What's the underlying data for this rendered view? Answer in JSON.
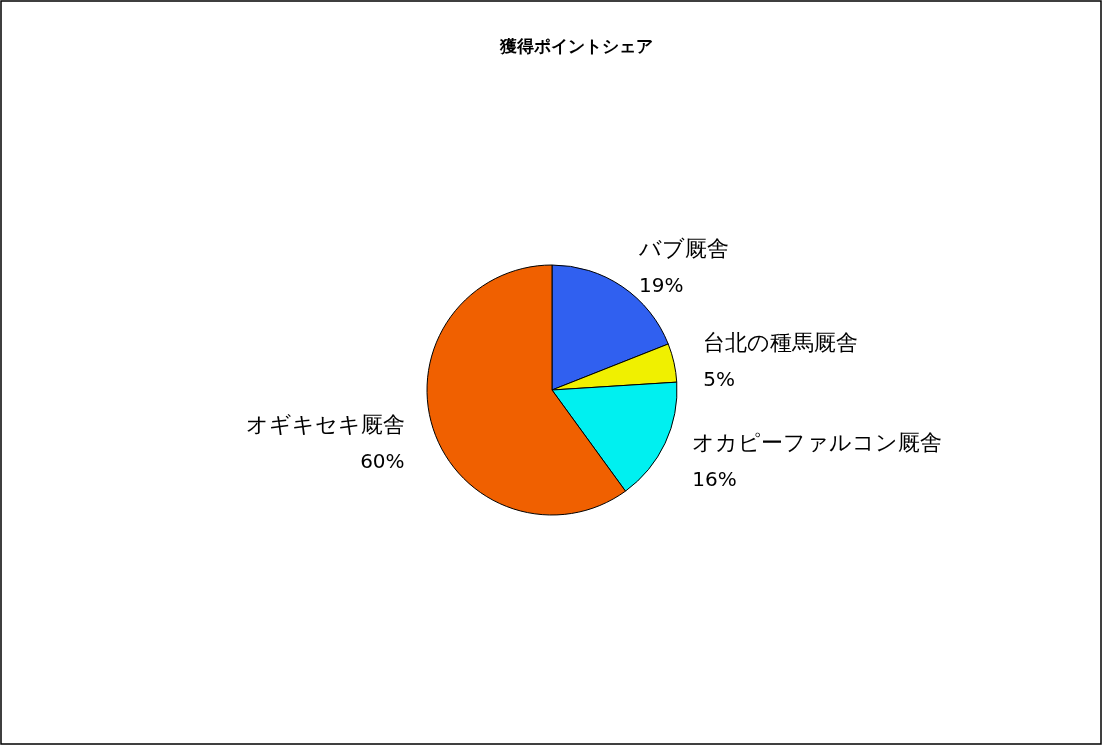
{
  "chart_data": {
    "type": "pie",
    "title": "獲得ポイントシェア",
    "categories": [
      "バブ厩舎",
      "台北の種馬厩舎",
      "オカピーファルコン厩舎",
      "オギキセキ厩舎"
    ],
    "values": [
      19,
      5,
      16,
      60
    ],
    "value_labels": [
      "19%",
      "5%",
      "16%",
      "60%"
    ],
    "colors": [
      "#3060f0",
      "#f0f000",
      "#00f0f0",
      "#f06000"
    ]
  }
}
